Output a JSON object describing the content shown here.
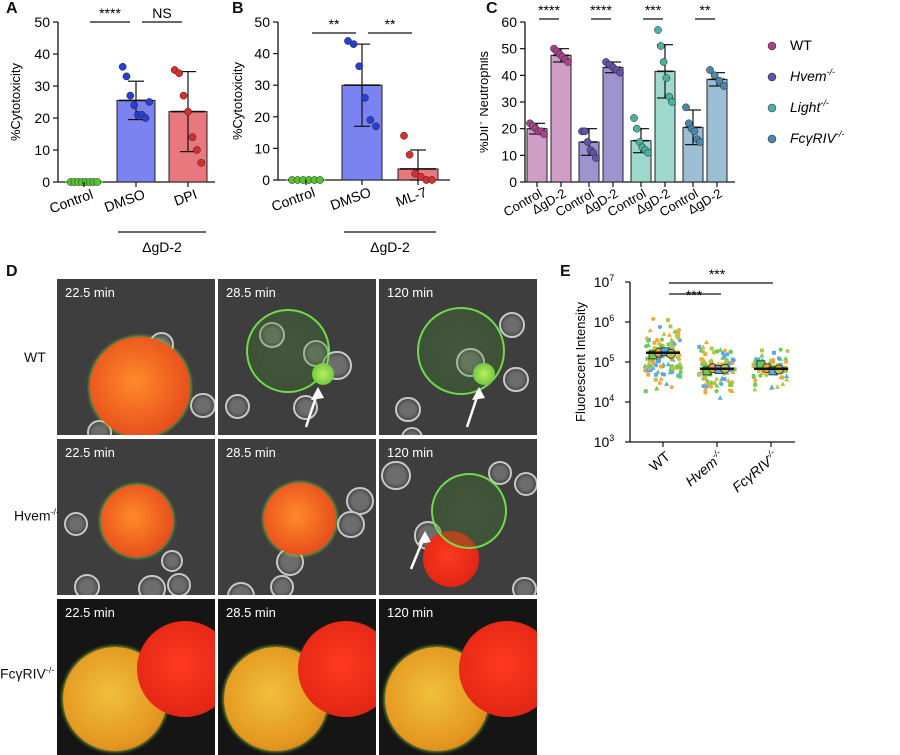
{
  "panels": {
    "A": "A",
    "B": "B",
    "C": "C",
    "D": "D",
    "E": "E"
  },
  "chart_data": [
    {
      "panel": "A",
      "type": "bar",
      "ylabel": "%Cytotoxicity",
      "ylim": [
        0,
        50
      ],
      "yticks": [
        "0",
        "10",
        "20",
        "30",
        "40",
        "50"
      ],
      "categories": [
        "Control",
        "DMSO",
        "DPI"
      ],
      "values": [
        0,
        25.5,
        22
      ],
      "errors": [
        0,
        6,
        12.5
      ],
      "colors": [
        "#6fce3f",
        "#7b83f2",
        "#e8787d"
      ],
      "dot_colors": [
        "#55c330",
        "#2a3fd1",
        "#d62f2f"
      ],
      "points": [
        [
          0,
          0,
          0,
          0,
          0,
          0,
          0,
          0
        ],
        [
          36,
          33,
          27,
          24,
          21,
          21,
          20,
          25
        ],
        [
          35,
          34,
          27,
          22,
          14,
          10,
          6
        ]
      ],
      "group_label": "ΔgD-2",
      "significance": [
        {
          "from": 0,
          "to": 1,
          "label": "****"
        },
        {
          "from": 1,
          "to": 2,
          "label": "NS"
        }
      ]
    },
    {
      "panel": "B",
      "type": "bar",
      "ylabel": "%Cytotoxicity",
      "ylim": [
        0,
        50
      ],
      "yticks": [
        "0",
        "10",
        "20",
        "30",
        "40",
        "50"
      ],
      "categories": [
        "Control",
        "DMSO",
        "ML-7"
      ],
      "values": [
        0,
        30,
        3.5
      ],
      "errors": [
        0,
        13,
        6
      ],
      "colors": [
        "#6fce3f",
        "#7b83f2",
        "#e8787d"
      ],
      "dot_colors": [
        "#55c330",
        "#2a3fd1",
        "#d62f2f"
      ],
      "points": [
        [
          0,
          0,
          0,
          0,
          0,
          0
        ],
        [
          44,
          43,
          36,
          26,
          19,
          17
        ],
        [
          14,
          8,
          2,
          1,
          0,
          0
        ]
      ],
      "group_label": "ΔgD-2",
      "significance": [
        {
          "from": 0,
          "to": 1,
          "label": "**"
        },
        {
          "from": 1,
          "to": 2,
          "label": "**"
        }
      ]
    },
    {
      "panel": "C",
      "type": "bar",
      "ylabel": "%DiI+ Neutrophils",
      "ylim": [
        0,
        60
      ],
      "yticks": [
        "0",
        "10",
        "20",
        "30",
        "40",
        "50",
        "60"
      ],
      "categories": [
        "Control",
        "ΔgD-2",
        "Control",
        "ΔgD-2",
        "Control",
        "ΔgD-2",
        "Control",
        "ΔgD-2"
      ],
      "values": [
        20,
        47.5,
        15,
        43,
        15.5,
        41.5,
        20.5,
        38.5
      ],
      "errors": [
        2,
        2.5,
        5,
        2,
        4.5,
        10,
        6.5,
        2.5
      ],
      "colors": [
        "#cf9ec6",
        "#cf9ec6",
        "#9d93cf",
        "#9d93cf",
        "#9fd8cd",
        "#9fd8cd",
        "#9cbfd6",
        "#9cbfd6"
      ],
      "dot_colors": [
        "#a8448c",
        "#a8448c",
        "#6252a8",
        "#6252a8",
        "#4bb0a0",
        "#4bb0a0",
        "#4d86ad",
        "#4d86ad"
      ],
      "points": [
        [
          22,
          21,
          20,
          19,
          19,
          18
        ],
        [
          50,
          49,
          48,
          47,
          46,
          45
        ],
        [
          19,
          19,
          15,
          12,
          11,
          9
        ],
        [
          45,
          44,
          43,
          42,
          41
        ],
        [
          24,
          20,
          15,
          13,
          12,
          11
        ],
        [
          57,
          51,
          45,
          39,
          32,
          30
        ],
        [
          28,
          22,
          20,
          19,
          16,
          15
        ],
        [
          42,
          40,
          38,
          36
        ]
      ],
      "significance": [
        {
          "from": 0,
          "to": 1,
          "label": "****"
        },
        {
          "from": 2,
          "to": 3,
          "label": "****"
        },
        {
          "from": 4,
          "to": 5,
          "label": "***"
        },
        {
          "from": 6,
          "to": 7,
          "label": "**"
        }
      ],
      "legend": {
        "placement": "right",
        "items": [
          {
            "base": "WT",
            "sup": "",
            "italic": false,
            "color": "#a8448c"
          },
          {
            "base": "Hvem",
            "sup": "-/-",
            "italic": true,
            "color": "#6252a8"
          },
          {
            "base": "Light",
            "sup": "-/-",
            "italic": true,
            "color": "#4bb0a0"
          },
          {
            "base": "FcγRIV",
            "sup": "-/-",
            "italic": true,
            "color": "#4d86ad"
          }
        ]
      }
    },
    {
      "panel": "E",
      "type": "scatter",
      "ylabel": "Fluorescent Intensity",
      "scale": "log",
      "ylim": [
        1000,
        10000000
      ],
      "yticks": [
        {
          "base": "10",
          "exp": "3"
        },
        {
          "base": "10",
          "exp": "4"
        },
        {
          "base": "10",
          "exp": "5"
        },
        {
          "base": "10",
          "exp": "6"
        },
        {
          "base": "10",
          "exp": "7"
        }
      ],
      "categories": [
        {
          "base": "WT",
          "sup": "",
          "italic": false
        },
        {
          "base": "Hvem",
          "sup": "-/-",
          "italic": true
        },
        {
          "base": "FcγRIV",
          "sup": "-/-",
          "italic": true
        }
      ],
      "medians": [
        170000,
        68000,
        68000
      ],
      "point_colors": [
        "#6bcb4f",
        "#f4a83a",
        "#5aa9e6",
        "#b7c44a"
      ],
      "spread": [
        {
          "min": 5000,
          "max": 1200000,
          "n": 110
        },
        {
          "min": 7000,
          "max": 500000,
          "n": 95
        },
        {
          "min": 15000,
          "max": 350000,
          "n": 60
        }
      ],
      "means_markers": [
        [
          150000,
          170000,
          180000,
          160000
        ],
        [
          60000,
          70000,
          65000,
          68000
        ],
        [
          85000,
          70000,
          60000,
          65000
        ]
      ],
      "significance": [
        {
          "from": 0,
          "to": 1,
          "label": "***"
        },
        {
          "from": 0,
          "to": 2,
          "label": "***"
        }
      ]
    }
  ],
  "micrographs": {
    "times": [
      "22.5 min",
      "28.5 min",
      "120 min"
    ],
    "rows": [
      {
        "base": "WT",
        "sup": ""
      },
      {
        "base": "Hvem",
        "sup": "-/-"
      },
      {
        "base": "FcγRIV",
        "sup": "-/-"
      }
    ]
  }
}
